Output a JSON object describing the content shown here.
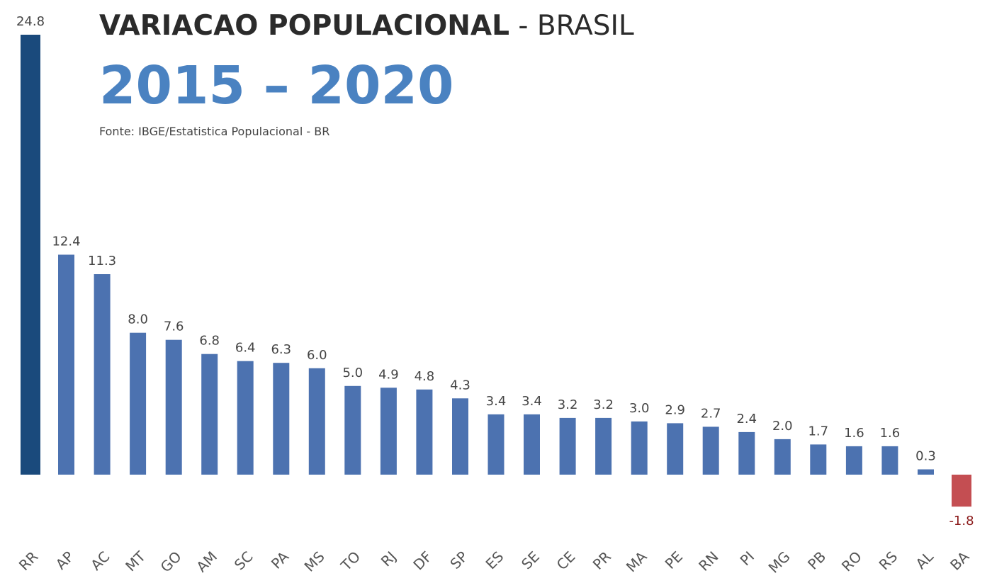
{
  "header": {
    "title_bold": "VARIACAO POPULACIONAL",
    "title_rest": " - BRASIL",
    "year_range": "2015 – 2020",
    "source": "Fonte: IBGE/Estatistica Populacional - BR"
  },
  "colors": {
    "bar": "#4c72b0",
    "highlight_bar": "#1a4a7c",
    "negative_bar": "#c44e52",
    "negative_label": "#8b1a1a"
  },
  "chart_data": {
    "type": "bar",
    "title": "VARIACAO POPULACIONAL - BRASIL",
    "subtitle": "2015 – 2020",
    "xlabel": "",
    "ylabel": "",
    "grid": false,
    "ylim": [
      -1.8,
      24.8
    ],
    "categories": [
      "RR",
      "AP",
      "AC",
      "MT",
      "GO",
      "AM",
      "SC",
      "PA",
      "MS",
      "TO",
      "RJ",
      "DF",
      "SP",
      "ES",
      "SE",
      "CE",
      "PR",
      "MA",
      "PE",
      "RN",
      "PI",
      "MG",
      "PB",
      "RO",
      "RS",
      "AL",
      "BA"
    ],
    "values": [
      24.8,
      12.4,
      11.3,
      8.0,
      7.6,
      6.8,
      6.4,
      6.3,
      6.0,
      5.0,
      4.9,
      4.8,
      4.3,
      3.4,
      3.4,
      3.2,
      3.2,
      3.0,
      2.9,
      2.7,
      2.4,
      2.0,
      1.7,
      1.6,
      1.6,
      0.3,
      -1.8
    ],
    "value_labels": [
      "24.8",
      "12.4",
      "11.3",
      "8.0",
      "7.6",
      "6.8",
      "6.4",
      "6.3",
      "6.0",
      "5.0",
      "4.9",
      "4.8",
      "4.3",
      "3.4",
      "3.4",
      "3.2",
      "3.2",
      "3.0",
      "2.9",
      "2.7",
      "2.4",
      "2.0",
      "1.7",
      "1.6",
      "1.6",
      "0.3",
      "-1.8"
    ]
  }
}
